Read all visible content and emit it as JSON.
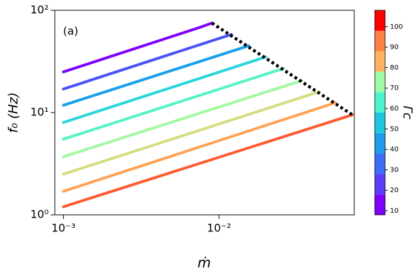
{
  "chart_data": {
    "type": "line",
    "annotation": "(a)",
    "x_label": "ṁ",
    "y_label": "f₀ (Hz)",
    "log_x": true,
    "log_y": true,
    "xlim": [
      0.00088,
      0.074
    ],
    "ylim": [
      1,
      100
    ],
    "xticks": [
      {
        "value": 0.001,
        "label": "10⁻³"
      },
      {
        "value": 0.01,
        "label": "10⁻²"
      }
    ],
    "yticks": [
      {
        "value": 1,
        "label": "10⁰"
      },
      {
        "value": 10,
        "label": "10¹"
      },
      {
        "value": 100,
        "label": "10²"
      }
    ],
    "series": [
      {
        "color": "#8000ff",
        "x": [
          0.001,
          0.0075,
          0.009
        ],
        "values": [
          25,
          68,
          75
        ]
      },
      {
        "color": "#4a52f8",
        "x": [
          0.001,
          0.012
        ],
        "values": [
          17,
          58
        ]
      },
      {
        "color": "#18a0ec",
        "x": [
          0.001,
          0.0155
        ],
        "values": [
          11.8,
          45
        ]
      },
      {
        "color": "#2ad6dc",
        "x": [
          0.001,
          0.02
        ],
        "values": [
          8,
          35
        ]
      },
      {
        "color": "#55f3c8",
        "x": [
          0.001,
          0.026
        ],
        "values": [
          5.5,
          27
        ]
      },
      {
        "color": "#a2f9a0",
        "x": [
          0.001,
          0.034
        ],
        "values": [
          3.7,
          20.5
        ]
      },
      {
        "color": "#d6dc80",
        "x": [
          0.001,
          0.044
        ],
        "values": [
          2.5,
          16
        ]
      },
      {
        "color": "#ffa256",
        "x": [
          0.001,
          0.056
        ],
        "values": [
          1.7,
          12.5
        ]
      },
      {
        "color": "#ff5a30",
        "x": [
          0.001,
          0.072
        ],
        "values": [
          1.2,
          9.5
        ]
      }
    ],
    "boundary": {
      "color": "#000000",
      "x": [
        0.009,
        0.072
      ],
      "values": [
        75,
        9.5
      ]
    },
    "colorbar": {
      "label": "Γc",
      "lim": [
        8,
        108
      ],
      "ticks": [
        10,
        20,
        30,
        40,
        50,
        60,
        70,
        80,
        90,
        100
      ],
      "bounds": [
        8,
        18,
        28,
        38,
        48,
        58,
        68,
        78,
        88,
        98,
        108
      ],
      "colors": [
        "#8000ff",
        "#5a3ffc",
        "#3c6ef7",
        "#1f9bec",
        "#1ec6df",
        "#4df3ce",
        "#9cfba4",
        "#ffb360",
        "#ff8040",
        "#ff0000"
      ]
    }
  }
}
